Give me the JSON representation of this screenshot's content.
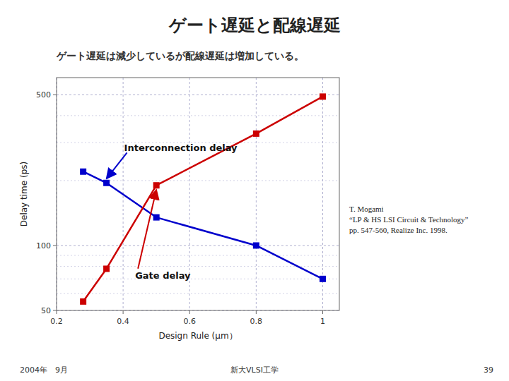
{
  "chart_data": {
    "type": "line",
    "title": "ゲート遅延と配線遅延",
    "subtitle": "ゲート遅延は減少しているが配線遅延は増加している。",
    "x_label": "Design Rule (μm）",
    "y_label": "Delay time (ps)",
    "x": [
      0.28,
      0.35,
      0.5,
      0.8,
      1.0
    ],
    "series": [
      {
        "name": "Interconnection delay",
        "color": "#0000cc",
        "values": [
          220,
          195,
          135,
          100,
          70
        ]
      },
      {
        "name": "Gate delay",
        "color": "#cc0000",
        "values": [
          55,
          78,
          190,
          330,
          490
        ]
      }
    ],
    "marker": "square",
    "log": "y",
    "grid": true,
    "xlim": [
      0.2,
      1.05
    ],
    "ylim": [
      50,
      600
    ],
    "xticks": [
      0.2,
      0.4,
      0.6,
      0.8,
      1
    ],
    "yticks": [
      50,
      100,
      500
    ],
    "minor_yticks": [
      60,
      70,
      80,
      90,
      200,
      300,
      400
    ],
    "annotations": [
      "T. Mogami\n“LP & HS LSI Circuit & Technology”\npp. 547-560, Realize Inc. 1998."
    ],
    "footer": [
      "2004年　9月",
      "新大VLSI工学",
      "39"
    ]
  }
}
